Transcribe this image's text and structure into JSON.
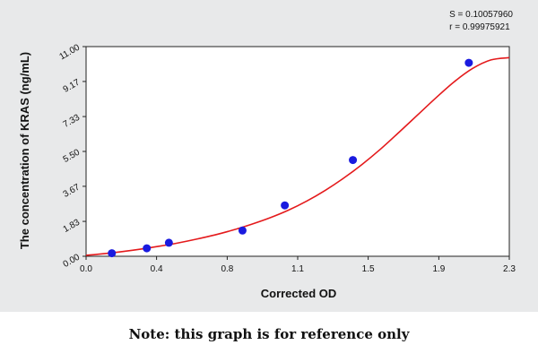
{
  "chart_data": {
    "type": "scatter",
    "title": "",
    "xlabel": "Corrected OD",
    "ylabel": "The concentration of KRAS (ng/mL)",
    "xlim": [
      0.0,
      2.3
    ],
    "ylim": [
      0.0,
      11.0
    ],
    "x_ticks": [
      "0.0",
      "0.4",
      "0.8",
      "1.1",
      "1.5",
      "1.9",
      "2.3"
    ],
    "y_ticks": [
      "0.00",
      "1.83",
      "3.67",
      "5.50",
      "7.33",
      "9.17",
      "11.00"
    ],
    "x_tick_values": [
      0.0,
      0.383,
      0.767,
      1.15,
      1.533,
      1.917,
      2.3
    ],
    "y_tick_values": [
      0.0,
      1.83,
      3.67,
      5.5,
      7.33,
      9.17,
      11.0
    ],
    "points": [
      {
        "x": 0.14,
        "y": 0.16
      },
      {
        "x": 0.33,
        "y": 0.42
      },
      {
        "x": 0.45,
        "y": 0.71
      },
      {
        "x": 0.85,
        "y": 1.35
      },
      {
        "x": 1.08,
        "y": 2.67
      },
      {
        "x": 1.45,
        "y": 5.05
      },
      {
        "x": 2.08,
        "y": 10.15
      }
    ],
    "curve": {
      "x": [
        0.0,
        0.1,
        0.2,
        0.3,
        0.4,
        0.5,
        0.6,
        0.7,
        0.8,
        0.9,
        1.0,
        1.1,
        1.2,
        1.3,
        1.4,
        1.5,
        1.6,
        1.7,
        1.8,
        1.9,
        2.0,
        2.1,
        2.2,
        2.3
      ],
      "y": [
        0.05,
        0.14,
        0.25,
        0.38,
        0.53,
        0.7,
        0.9,
        1.12,
        1.38,
        1.68,
        2.02,
        2.42,
        2.9,
        3.46,
        4.1,
        4.82,
        5.62,
        6.5,
        7.4,
        8.3,
        9.15,
        9.85,
        10.3,
        10.42
      ]
    },
    "grid": false,
    "legend": "none",
    "colors": {
      "curve": "#e41a1c",
      "points": "#1a1adf",
      "background": "#e8e9ea"
    }
  },
  "stats": {
    "s_line": "S = 0.10057960",
    "r_line": "r = 0.99975921"
  },
  "note": "Note: this graph is for reference only"
}
